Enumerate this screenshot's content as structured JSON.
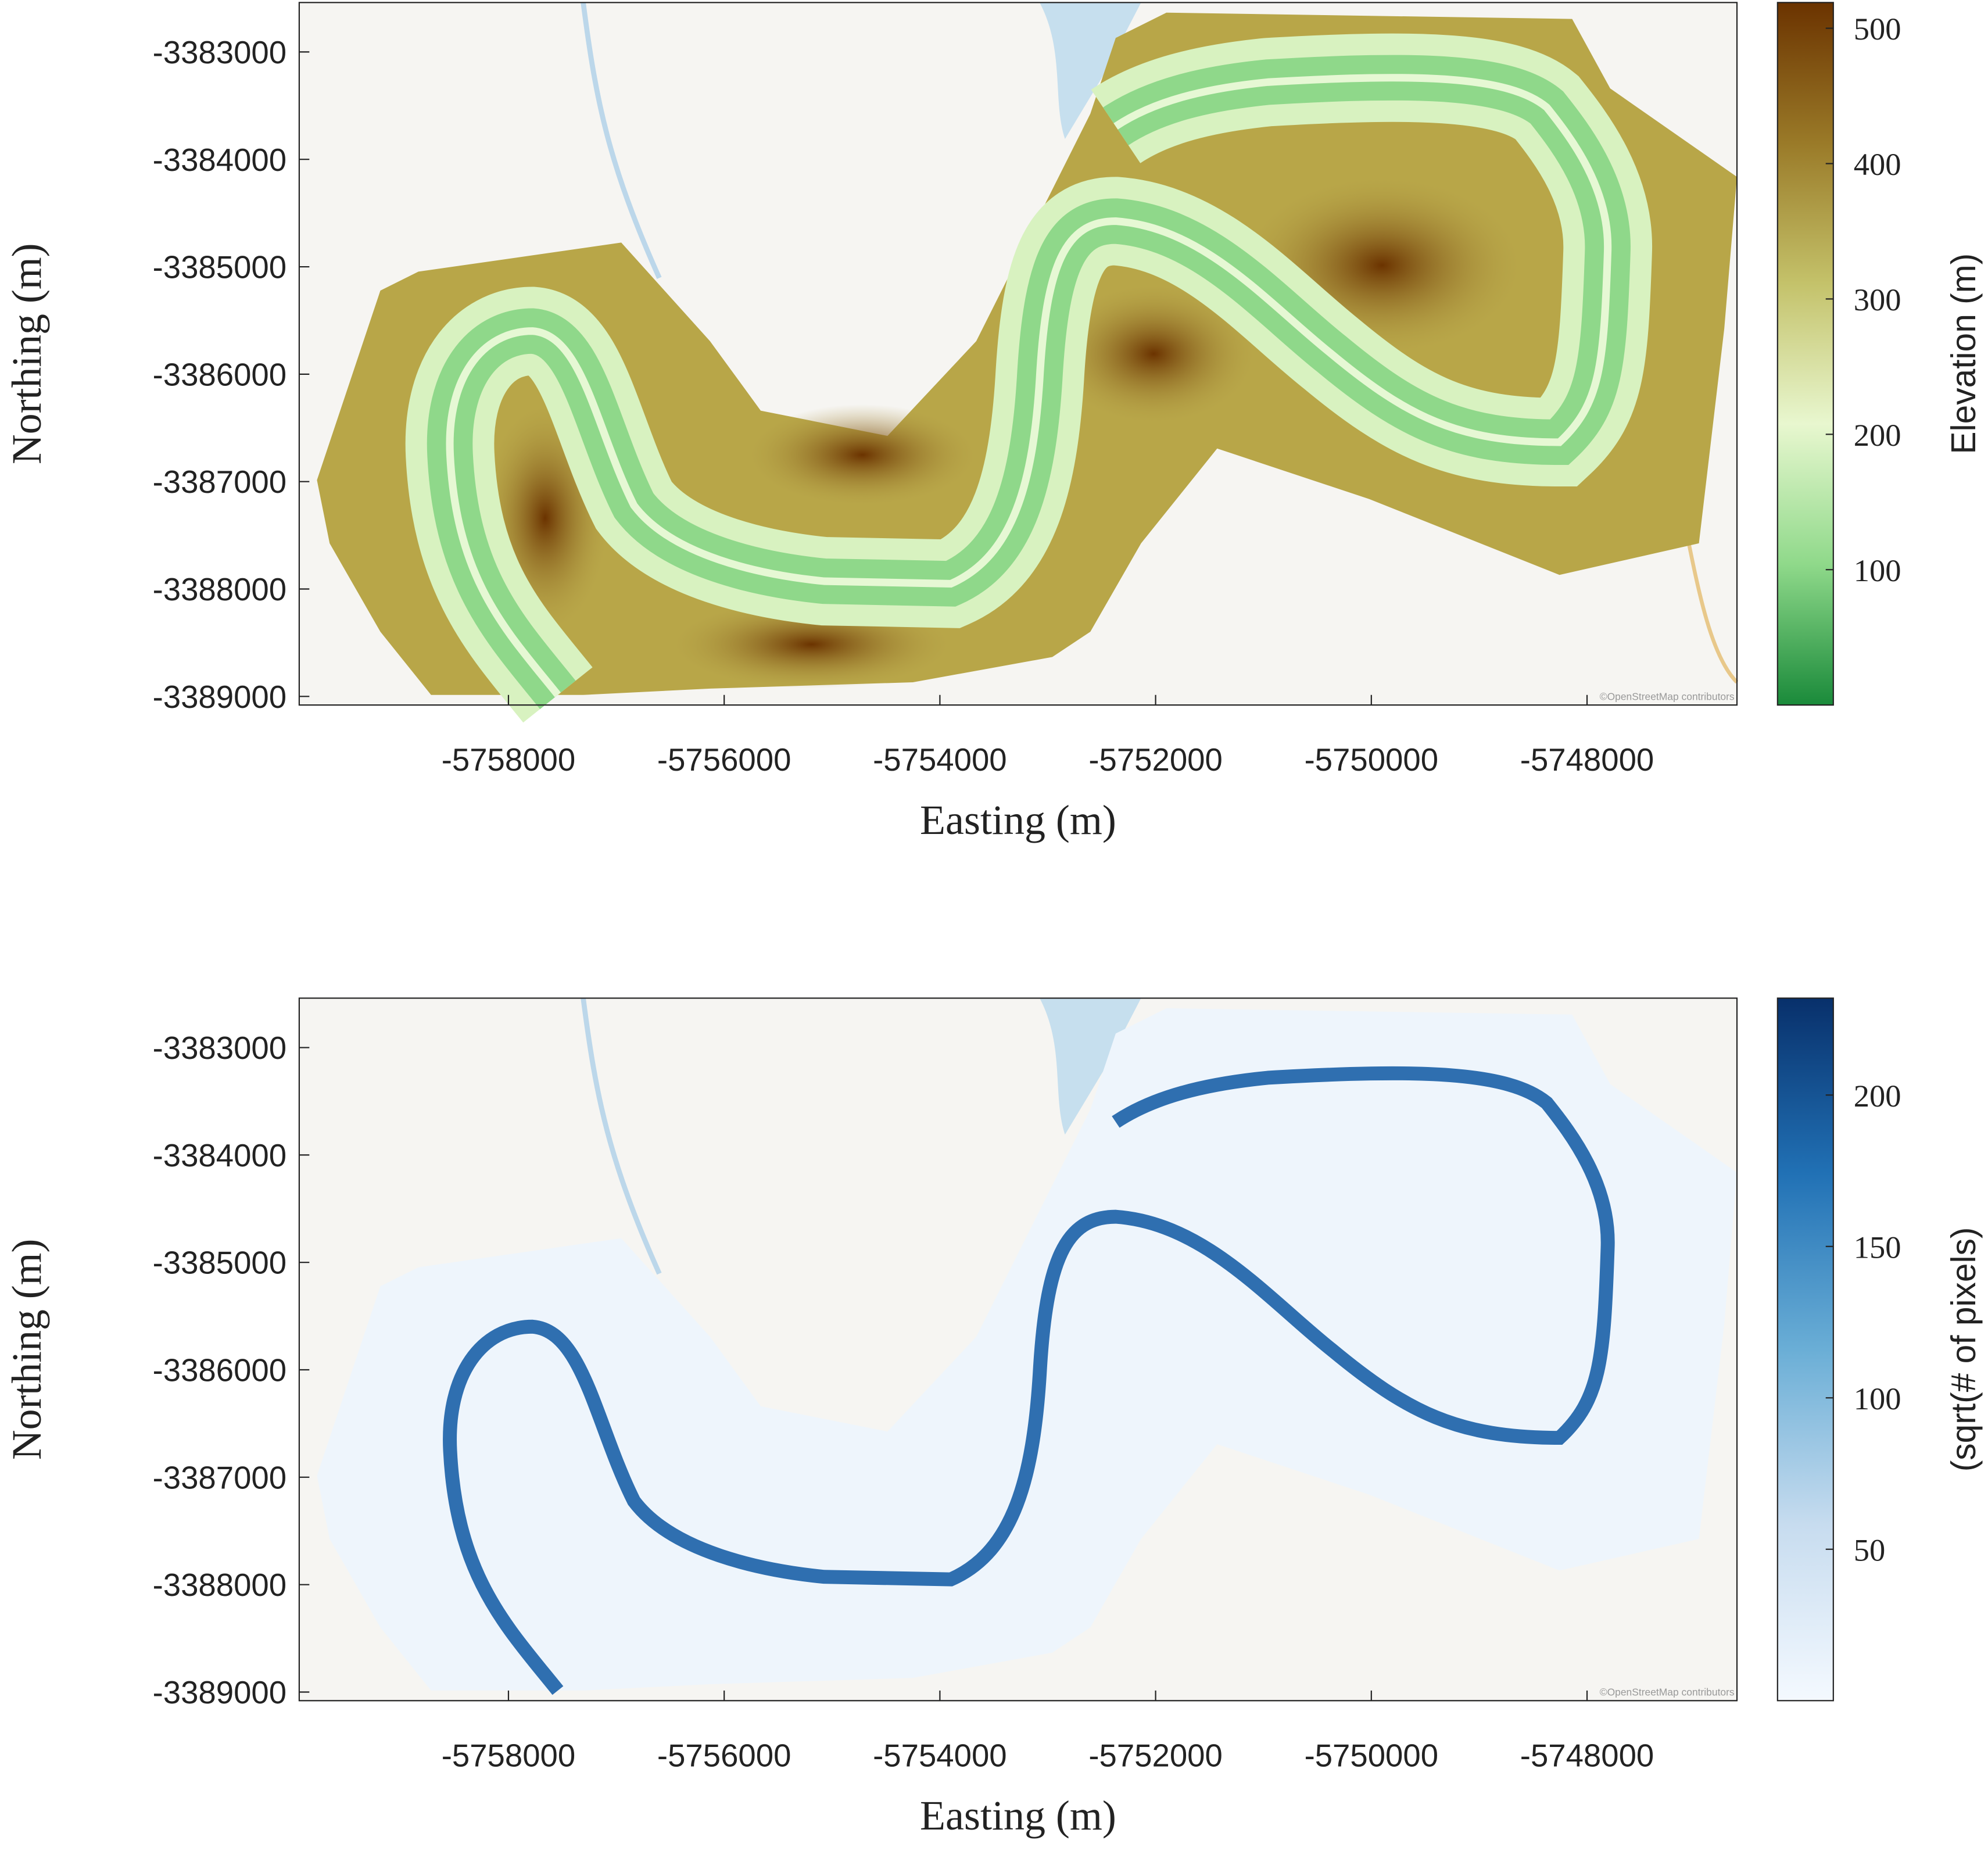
{
  "chart_data": [
    {
      "type": "map",
      "xlabel": "Easting (m)",
      "ylabel": "Northing (m)",
      "xlim": [
        -5759940,
        -5746610
      ],
      "ylim": [
        -3389080,
        -3382540
      ],
      "xticks": [
        -5758000,
        -5756000,
        -5754000,
        -5752000,
        -5750000,
        -5748000
      ],
      "yticks": [
        -3383000,
        -3384000,
        -3385000,
        -3386000,
        -3387000,
        -3388000,
        -3389000
      ],
      "colorbar_label": "Elevation (m)",
      "clim": [
        0,
        519
      ],
      "cticks": [
        100,
        200,
        300,
        400,
        500
      ],
      "colormap": [
        "#1a8a3a",
        "#8fd98a",
        "#e8f7cf",
        "#c4c26a",
        "#9a7a28",
        "#6b3300"
      ],
      "attribution": "©OpenStreetMap contributors"
    },
    {
      "type": "map",
      "xlabel": "Easting (m)",
      "ylabel": "Northing (m)",
      "xlim": [
        -5759940,
        -5746610
      ],
      "ylim": [
        -3389080,
        -3382540
      ],
      "xticks": [
        -5758000,
        -5756000,
        -5754000,
        -5752000,
        -5750000,
        -5748000
      ],
      "yticks": [
        -3383000,
        -3384000,
        -3385000,
        -3386000,
        -3387000,
        -3388000,
        -3389000
      ],
      "colorbar_label": "(sqrt(# of pixels)",
      "clim": [
        0,
        232
      ],
      "cticks": [
        50,
        100,
        150,
        200
      ],
      "colormap": [
        "#f4f9ff",
        "#c7dcef",
        "#6aaed6",
        "#2171b5",
        "#08306b"
      ],
      "attribution": "©OpenStreetMap contributors"
    }
  ]
}
